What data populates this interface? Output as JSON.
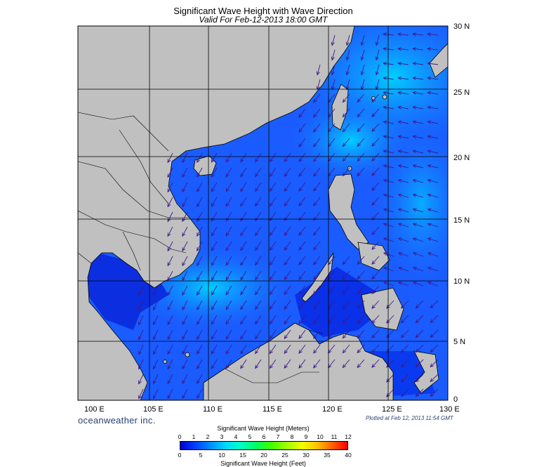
{
  "title": "Significant Wave Height with Wave Direction",
  "subtitle": "Valid For Feb-12-2013 18:00 GMT",
  "brand": "oceanweather inc.",
  "plotted": "Plotted at Feb 12, 2013 11:54 GMT",
  "longitudes": [
    "100 E",
    "105 E",
    "110 E",
    "115 E",
    "120 E",
    "125 E",
    "130 E"
  ],
  "latitudes": [
    "30 N",
    "25 N",
    "20 N",
    "15 N",
    "10 N",
    "5 N",
    "0"
  ],
  "legend": {
    "title_meters": "Significant Wave Height (Meters)",
    "title_feet": "Significant Wave Height (Feet)",
    "meters_ticks": [
      "0",
      "1",
      "2",
      "3",
      "4",
      "5",
      "6",
      "7",
      "8",
      "9",
      "10",
      "11",
      "12"
    ],
    "feet_ticks": [
      "0",
      "5",
      "10",
      "15",
      "20",
      "25",
      "30",
      "35",
      "40"
    ],
    "colors": [
      "#0000d0",
      "#0040ff",
      "#0090ff",
      "#00d8ff",
      "#00ffc0",
      "#00ff60",
      "#40ff00",
      "#a0ff00",
      "#f0ff00",
      "#ffc000",
      "#ff6000",
      "#ff0000"
    ]
  },
  "colors": {
    "land": "#c0c0c0",
    "sea_low": "#0000c8",
    "sea_mid": "#1a66ff",
    "sea_high": "#00c8ff",
    "arrows": "#3d1a8a"
  }
}
